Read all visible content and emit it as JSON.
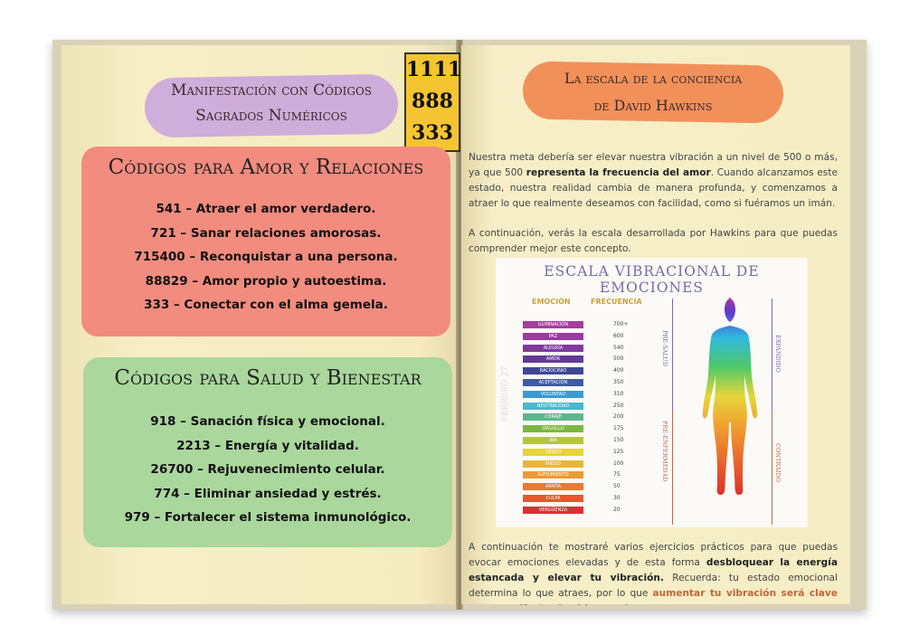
{
  "left_page": {
    "title_lines": [
      "Manifestación con Códigos",
      "Sagrados Numéricos"
    ],
    "number_box": [
      "1111",
      "888",
      "333"
    ],
    "love_card": {
      "title": "Códigos para Amor y Relaciones",
      "items": [
        "541 – Atraer el amor verdadero.",
        "721 – Sanar relaciones amorosas.",
        "715400 – Reconquistar a una persona.",
        "88829 – Amor propio y autoestima.",
        "333 – Conectar con el alma gemela."
      ]
    },
    "health_card": {
      "title": "Códigos para Salud y Bienestar",
      "items": [
        "918 – Sanación física y emocional.",
        "2213 – Energía y vitalidad.",
        "26700 – Rejuvenecimiento celular.",
        "774 – Eliminar ansiedad y estrés.",
        "979 – Fortalecer el sistema inmunológico."
      ]
    }
  },
  "right_page": {
    "title_lines": [
      "La escala de la conciencia",
      "de David Hawkins"
    ],
    "para1": {
      "a": "Nuestra meta debería ser elevar nuestra vibración a un nivel de 500 o más, ya que 500 ",
      "b": "representa la frecuencia del amor",
      "c": ". Cuando alcanzamos este estado, nuestra realidad cambia de manera profunda, y comenzamos a atraer lo que realmente deseamos con facilidad, como si fuéramos un imán."
    },
    "para2": "A continuación, verás la escala desarrollada por Hawkins para que puedas comprender mejor este concepto.",
    "para3": {
      "a": "A continuación te mostraré varios ejercicios prácticos para que puedas evocar emociones elevadas y de esta forma ",
      "b": "desbloquear la energía estancada y elevar tu vibración.",
      "c": " Recuerda: tu estado emocional determina lo que atraes, por lo que ",
      "d": "aumentar tu vibración será clave para manifestar la vida que deseas."
    }
  },
  "chart": {
    "title": "ESCALA VIBRACIONAL DE EMOCIONES",
    "col_emotion": "EMOCIÓN",
    "col_frequency": "FRECUENCIA",
    "rows": [
      {
        "e": "ILUMINACIÓN",
        "f": "700+",
        "c": "#a63c9c"
      },
      {
        "e": "PAZ",
        "f": "600",
        "c": "#9a3a9e"
      },
      {
        "e": "ALEGRÍA",
        "f": "540",
        "c": "#7f3a9c"
      },
      {
        "e": "AMOR",
        "f": "500",
        "c": "#633a98"
      },
      {
        "e": "RACIOCINIO",
        "f": "400",
        "c": "#3f4794"
      },
      {
        "e": "ACEPTACIÓN",
        "f": "350",
        "c": "#3e5ba6"
      },
      {
        "e": "VOLUNTAD",
        "f": "310",
        "c": "#3b9ad4"
      },
      {
        "e": "NEUTRALIDAD",
        "f": "250",
        "c": "#4bb8cc"
      },
      {
        "e": "CORAJE",
        "f": "200",
        "c": "#5cb88a"
      },
      {
        "e": "ORGULLO",
        "f": "175",
        "c": "#7ab83e"
      },
      {
        "e": "IRA",
        "f": "150",
        "c": "#b4c83a"
      },
      {
        "e": "DESEO",
        "f": "125",
        "c": "#e8d33a"
      },
      {
        "e": "MIEDO",
        "f": "100",
        "c": "#eab53a"
      },
      {
        "e": "SUFRIMIENTO",
        "f": "75",
        "c": "#ec9a34"
      },
      {
        "e": "APATÍA",
        "f": "50",
        "c": "#ea7a30"
      },
      {
        "e": "CULPA",
        "f": "30",
        "c": "#e4582c"
      },
      {
        "e": "VERGÜENZA",
        "f": "20",
        "c": "#dc2f34"
      }
    ],
    "label_pre_health": "PRE-SALUD",
    "label_pre_illness": "PRE-ENFERMEDAD",
    "label_expanded": "EXPANDIDO",
    "label_contracted": "CONTRAÍDO",
    "side_mark": "FEBRERO 27"
  },
  "colors": {
    "purple_brush": "#c9a6dc",
    "orange_brush": "#f2905a",
    "love_card": "#f28c7f",
    "health_card": "#a9d79c",
    "number_box": "#f4c531"
  }
}
